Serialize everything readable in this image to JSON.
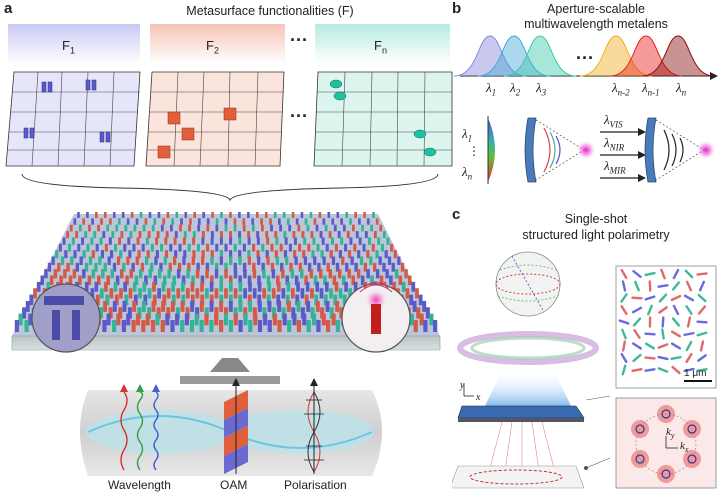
{
  "panel_a": {
    "letter": "a",
    "title": "Metasurface functionalities (F)",
    "f_labels": [
      {
        "main": "F",
        "sub": "1"
      },
      {
        "main": "F",
        "sub": "2"
      },
      {
        "main": "F",
        "sub": "n"
      }
    ],
    "ellipsis": "···",
    "bottom_labels": [
      "Wavelength",
      "OAM",
      "Polarisation"
    ]
  },
  "panel_b": {
    "letter": "b",
    "title_line1": "Aperture-scalable",
    "title_line2": "multiwavelength metalens",
    "spectrum_labels": [
      {
        "main": "λ",
        "sub": "1"
      },
      {
        "main": "λ",
        "sub": "2"
      },
      {
        "main": "λ",
        "sub": "3"
      },
      {
        "main": "λ",
        "sub": "n-2"
      },
      {
        "main": "λ",
        "sub": "n-1"
      },
      {
        "main": "λ",
        "sub": "n"
      }
    ],
    "ellipsis": "···",
    "left_labels": [
      {
        "main": "λ",
        "sub": "1"
      },
      {
        "main": "λ",
        "sub": "n"
      }
    ],
    "vertical_dots": "⋮",
    "band_labels": [
      {
        "main": "λ",
        "sub": "VIS"
      },
      {
        "main": "λ",
        "sub": "NIR"
      },
      {
        "main": "λ",
        "sub": "MIR"
      }
    ],
    "colors": [
      "#8888dd",
      "#44a8d8",
      "#3cc8a8",
      "#f0b020",
      "#e82020",
      "#8a1010"
    ]
  },
  "panel_c": {
    "letter": "c",
    "title_line1": "Single-shot",
    "title_line2": "structured light polarimetry",
    "axis_y": "y",
    "axis_x": "x",
    "scale_bar": "1 μm",
    "k_y": {
      "main": "k",
      "sub": "y"
    },
    "k_x": {
      "main": "k",
      "sub": "x"
    }
  }
}
